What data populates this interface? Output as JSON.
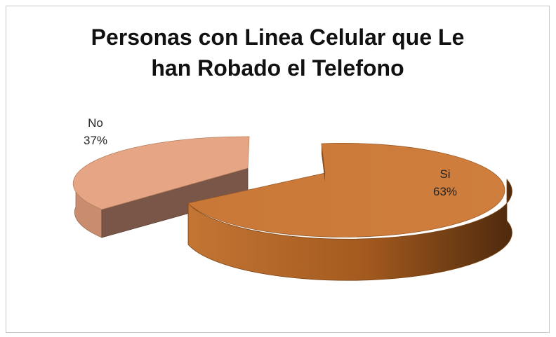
{
  "chart_data": {
    "type": "pie",
    "title_lines": [
      "Personas con Linea Celular que Le",
      "han Robado el Telefono"
    ],
    "slices": [
      {
        "name": "Si",
        "value": 63,
        "label": "63%",
        "color": "#CC7A3A"
      },
      {
        "name": "No",
        "value": 37,
        "label": "37%",
        "color": "#E8A989"
      }
    ],
    "legend": "none",
    "exploded": true,
    "style": "3d"
  }
}
